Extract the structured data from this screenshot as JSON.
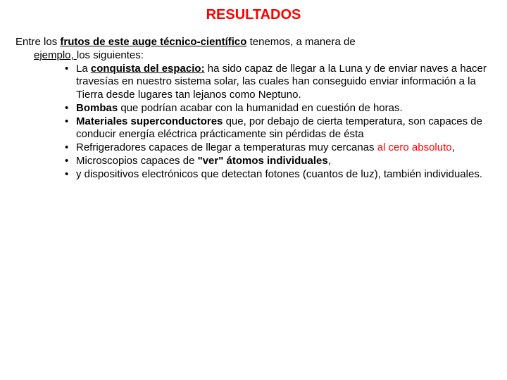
{
  "title": "RESULTADOS",
  "intro": {
    "pre": "Entre los ",
    "bold_u": "frutos de este auge técnico-científico",
    "post": " tenemos, a manera de",
    "line2_pre": "ejemplo, ",
    "line2_post": "los siguientes:"
  },
  "items": [
    {
      "segs": [
        {
          "t": "La "
        },
        {
          "t": "conquista del espacio:",
          "b": true,
          "u": true
        },
        {
          "t": " ha sido capaz de llegar a la Luna y de enviar naves a hacer travesías en nuestro sistema solar, las cuales han conseguido enviar información a la Tierra desde lugares tan lejanos como Neptuno."
        }
      ]
    },
    {
      "segs": [
        {
          "t": "Bombas",
          "b": true
        },
        {
          "t": " que podrían acabar con la humanidad en cuestión de horas."
        }
      ]
    },
    {
      "segs": [
        {
          "t": "Materiales superconductores",
          "b": true
        },
        {
          "t": " que, por debajo de cierta temperatura, son capaces de conducir energía eléctrica prácticamente sin pérdidas de ésta"
        }
      ]
    },
    {
      "segs": [
        {
          "t": "Refrigeradores capaces de llegar a temperaturas muy cercanas "
        },
        {
          "t": "al cero absoluto",
          "red": true
        },
        {
          "t": ","
        }
      ]
    },
    {
      "segs": [
        {
          "t": "Microscopios capaces de "
        },
        {
          "t": "\"ver\" átomos individuales",
          "b": true
        },
        {
          "t": ","
        }
      ]
    },
    {
      "segs": [
        {
          "t": "y dispositivos electrónicos que detectan fotones (cuantos de luz), también individuales."
        }
      ]
    }
  ]
}
